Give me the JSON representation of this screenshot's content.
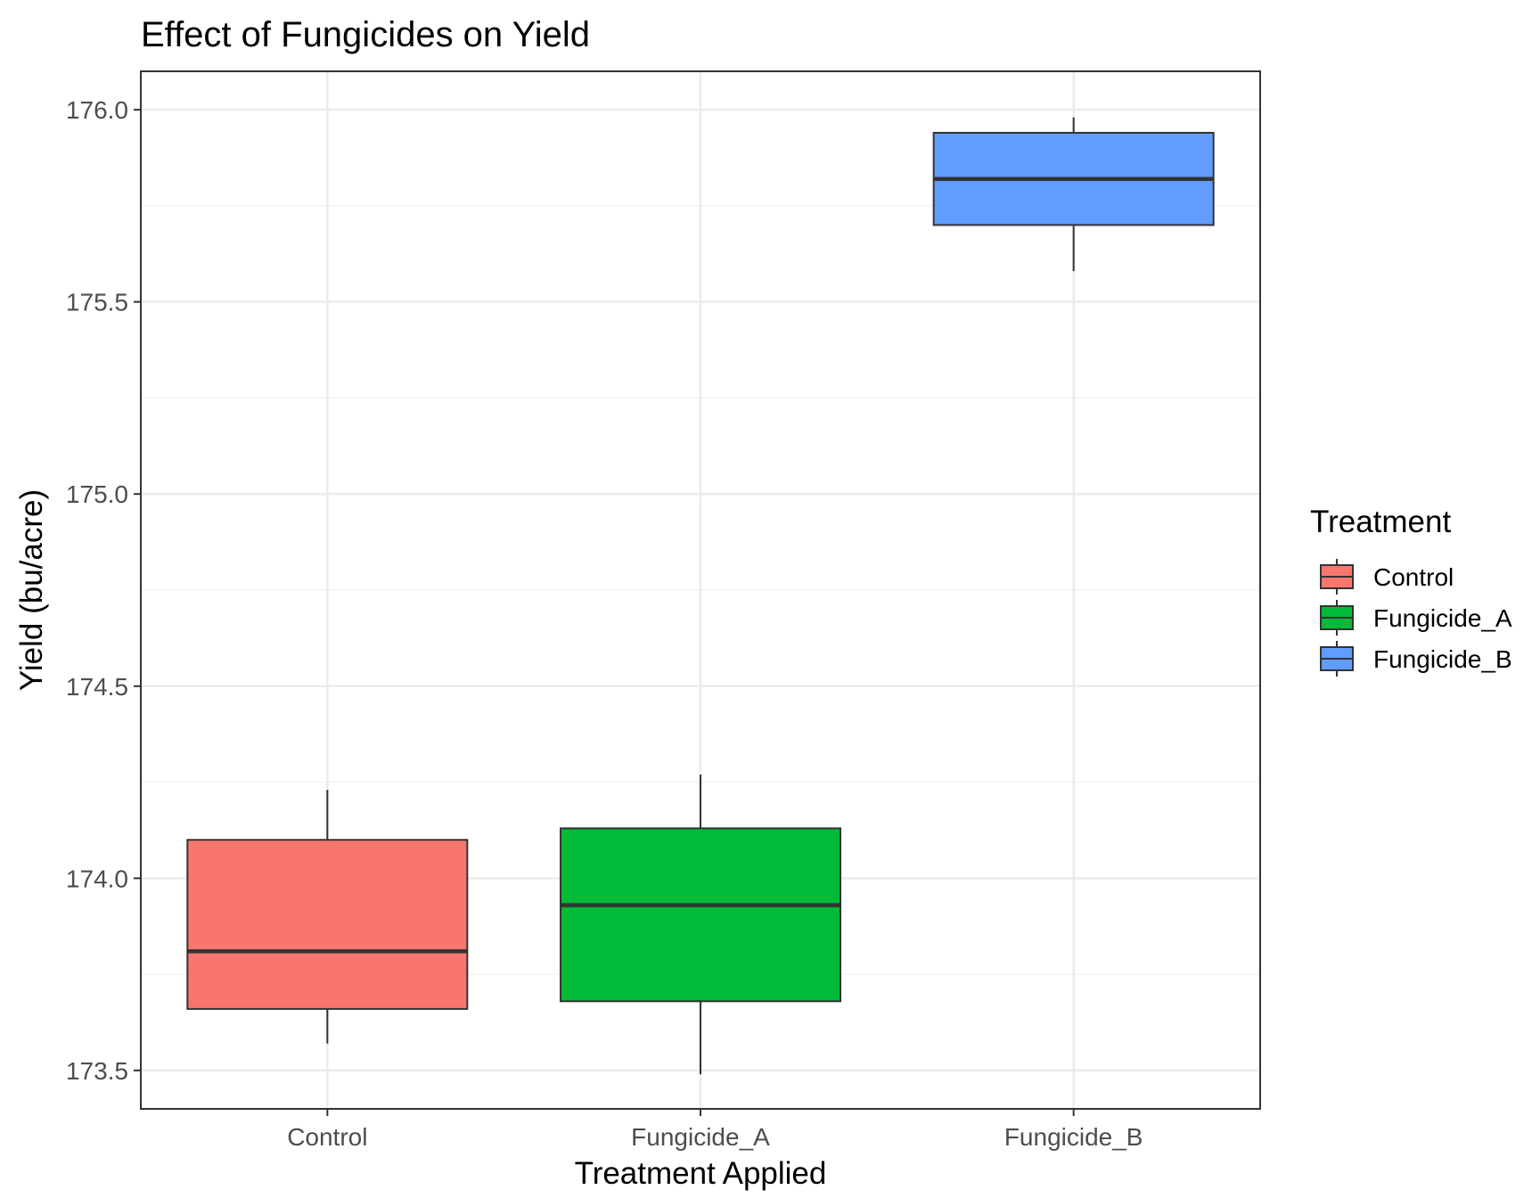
{
  "chart_data": {
    "type": "boxplot",
    "title": "Effect of Fungicides on Yield",
    "xlabel": "Treatment Applied",
    "ylabel": "Yield (bu/acre)",
    "categories": [
      "Control",
      "Fungicide_A",
      "Fungicide_B"
    ],
    "ylim": [
      173.4,
      176.1
    ],
    "yticks": [
      173.5,
      174.0,
      174.5,
      175.0,
      175.5,
      176.0
    ],
    "ytick_labels": [
      "173.5",
      "174.0",
      "174.5",
      "175.0",
      "175.5",
      "176.0"
    ],
    "grid": true,
    "legend": {
      "title": "Treatment",
      "position": "right",
      "entries": [
        "Control",
        "Fungicide_A",
        "Fungicide_B"
      ]
    },
    "series": [
      {
        "category": "Control",
        "color": "#F8766D",
        "min": 173.57,
        "q1": 173.66,
        "median": 173.81,
        "q3": 174.1,
        "max": 174.23
      },
      {
        "category": "Fungicide_A",
        "color": "#00BA38",
        "min": 173.49,
        "q1": 173.68,
        "median": 173.93,
        "q3": 174.13,
        "max": 174.27
      },
      {
        "category": "Fungicide_B",
        "color": "#619CFF",
        "min": 175.58,
        "q1": 175.7,
        "median": 175.82,
        "q3": 175.94,
        "max": 175.98
      }
    ]
  }
}
